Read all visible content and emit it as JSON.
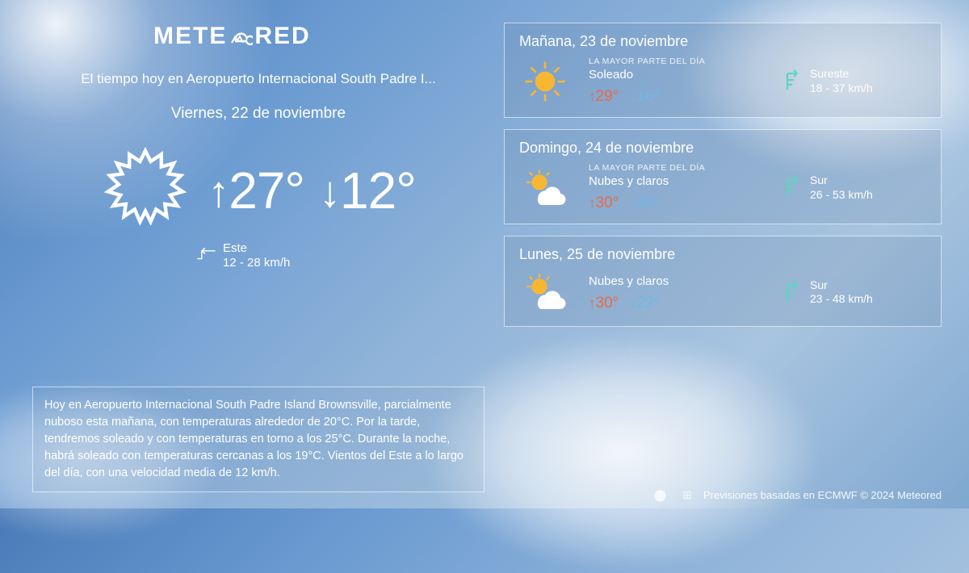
{
  "brand": {
    "name_left": "METE",
    "name_right": "RED"
  },
  "colors": {
    "hi": "#e96a4a",
    "lo": "#6fb8e8",
    "wind_icon": "#5fd4c4",
    "text": "#ffffff",
    "card_border": "rgba(255,255,255,0.6)"
  },
  "location_line": "El tiempo hoy en Aeropuerto Internacional South Padre I...",
  "today": {
    "date": "Viernes, 22 de noviembre",
    "hi": "27°",
    "lo": "12°",
    "wind_dir": "Este",
    "wind_range": "12 - 28 km/h"
  },
  "summary": "Hoy en Aeropuerto Internacional South Padre Island Brownsville, parcialmente nuboso esta mañana, con temperaturas alrededor de 20°C. Por la tarde, tendremos soleado y con temperaturas en torno a los 25°C. Durante la noche, habrá soleado  con temperaturas cercanas a los 19°C. Vientos del Este a lo largo del día, con una velocidad media de 12 km/h.",
  "forecast": [
    {
      "date": "Mañana, 23 de noviembre",
      "caption": "LA MAYOR PARTE DEL DÍA",
      "condition": "Soleado",
      "icon": "sun",
      "hi": "29°",
      "lo": "16°",
      "wind_dir": "Sureste",
      "wind_range": "18 - 37 km/h"
    },
    {
      "date": "Domingo, 24 de noviembre",
      "caption": "LA MAYOR PARTE DEL DÍA",
      "condition": "Nubes y claros",
      "icon": "sun-cloud",
      "hi": "30°",
      "lo": "20°",
      "wind_dir": "Sur",
      "wind_range": "26 - 53 km/h"
    },
    {
      "date": "Lunes, 25 de noviembre",
      "caption": "",
      "condition": "Nubes y claros",
      "icon": "sun-cloud",
      "hi": "30°",
      "lo": "22°",
      "wind_dir": "Sur",
      "wind_range": "23 - 48 km/h"
    }
  ],
  "footer": {
    "text": "Previsiones basadas en ECMWF © 2024 Meteored"
  }
}
